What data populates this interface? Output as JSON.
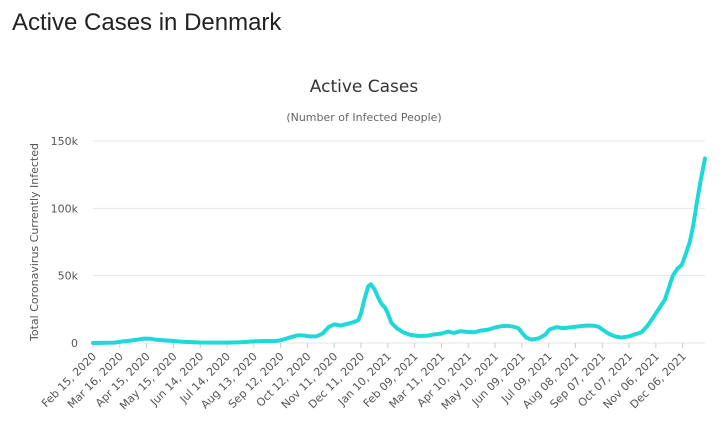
{
  "page": {
    "title": "Active Cases in Denmark"
  },
  "colors": {
    "line": "#1fd8d8",
    "grid": "#e6e6e6",
    "text": "#555555"
  },
  "chart_data": {
    "type": "line",
    "title": "Active Cases",
    "subtitle": "(Number of Infected People)",
    "xlabel": "",
    "ylabel": "Total Coronavirus Currently Infected",
    "ylim": [
      0,
      150000
    ],
    "y_ticks": [
      0,
      50000,
      100000,
      150000
    ],
    "y_tick_labels": [
      "0",
      "50k",
      "100k",
      "150k"
    ],
    "x_range": [
      "2020-02-15",
      "2021-12-31"
    ],
    "x_tick_labels": [
      "Feb 15, 2020",
      "Mar 16, 2020",
      "Apr 15, 2020",
      "May 15, 2020",
      "Jun 14, 2020",
      "Jul 14, 2020",
      "Aug 13, 2020",
      "Sep 12, 2020",
      "Oct 12, 2020",
      "Nov 11, 2020",
      "Dec 11, 2020",
      "Jan 10, 2021",
      "Feb 09, 2021",
      "Mar 11, 2021",
      "Apr 10, 2021",
      "May 10, 2021",
      "Jun 09, 2021",
      "Jul 09, 2021",
      "Aug 08, 2021",
      "Sep 07, 2021",
      "Oct 07, 2021",
      "Nov 06, 2021",
      "Dec 06, 2021"
    ],
    "grid": true,
    "legend": "none",
    "series": [
      {
        "points": [
          [
            "2020-02-15",
            0
          ],
          [
            "2020-03-10",
            300
          ],
          [
            "2020-03-20",
            1200
          ],
          [
            "2020-03-30",
            2000
          ],
          [
            "2020-04-05",
            2500
          ],
          [
            "2020-04-12",
            3300
          ],
          [
            "2020-04-19",
            3200
          ],
          [
            "2020-04-26",
            2400
          ],
          [
            "2020-05-10",
            1800
          ],
          [
            "2020-05-25",
            1000
          ],
          [
            "2020-06-14",
            400
          ],
          [
            "2020-07-14",
            300
          ],
          [
            "2020-07-30",
            500
          ],
          [
            "2020-08-13",
            1200
          ],
          [
            "2020-08-25",
            1500
          ],
          [
            "2020-09-05",
            1400
          ],
          [
            "2020-09-12",
            2000
          ],
          [
            "2020-09-22",
            4000
          ],
          [
            "2020-10-01",
            5700
          ],
          [
            "2020-10-08",
            5600
          ],
          [
            "2020-10-15",
            4800
          ],
          [
            "2020-10-22",
            5000
          ],
          [
            "2020-10-29",
            7000
          ],
          [
            "2020-11-05",
            12000
          ],
          [
            "2020-11-11",
            13800
          ],
          [
            "2020-11-18",
            13000
          ],
          [
            "2020-11-25",
            14000
          ],
          [
            "2020-12-03",
            15500
          ],
          [
            "2020-12-08",
            17000
          ],
          [
            "2020-12-11",
            22000
          ],
          [
            "2020-12-15",
            33000
          ],
          [
            "2020-12-19",
            42000
          ],
          [
            "2020-12-22",
            43500
          ],
          [
            "2020-12-26",
            40000
          ],
          [
            "2020-12-30",
            34000
          ],
          [
            "2021-01-03",
            29000
          ],
          [
            "2021-01-07",
            26000
          ],
          [
            "2021-01-10",
            22000
          ],
          [
            "2021-01-14",
            15000
          ],
          [
            "2021-01-20",
            11000
          ],
          [
            "2021-01-27",
            8000
          ],
          [
            "2021-02-04",
            6000
          ],
          [
            "2021-02-14",
            5200
          ],
          [
            "2021-02-24",
            5500
          ],
          [
            "2021-03-04",
            6500
          ],
          [
            "2021-03-11",
            7000
          ],
          [
            "2021-03-18",
            8500
          ],
          [
            "2021-03-25",
            7500
          ],
          [
            "2021-04-01",
            8700
          ],
          [
            "2021-04-10",
            8200
          ],
          [
            "2021-04-17",
            8000
          ],
          [
            "2021-04-24",
            9200
          ],
          [
            "2021-05-03",
            10000
          ],
          [
            "2021-05-10",
            11500
          ],
          [
            "2021-05-17",
            12500
          ],
          [
            "2021-05-24",
            12800
          ],
          [
            "2021-05-31",
            12000
          ],
          [
            "2021-06-05",
            11000
          ],
          [
            "2021-06-10",
            7000
          ],
          [
            "2021-06-14",
            4000
          ],
          [
            "2021-06-20",
            2500
          ],
          [
            "2021-06-28",
            3500
          ],
          [
            "2021-07-05",
            6000
          ],
          [
            "2021-07-10",
            10000
          ],
          [
            "2021-07-18",
            11800
          ],
          [
            "2021-07-25",
            11000
          ],
          [
            "2021-08-01",
            11500
          ],
          [
            "2021-08-08",
            12000
          ],
          [
            "2021-08-15",
            12600
          ],
          [
            "2021-08-22",
            13000
          ],
          [
            "2021-08-29",
            12800
          ],
          [
            "2021-09-03",
            12000
          ],
          [
            "2021-09-07",
            10000
          ],
          [
            "2021-09-14",
            7000
          ],
          [
            "2021-09-21",
            5000
          ],
          [
            "2021-09-28",
            4000
          ],
          [
            "2021-10-07",
            5000
          ],
          [
            "2021-10-14",
            6500
          ],
          [
            "2021-10-21",
            8000
          ],
          [
            "2021-10-28",
            13000
          ],
          [
            "2021-11-04",
            20000
          ],
          [
            "2021-11-11",
            27000
          ],
          [
            "2021-11-16",
            32000
          ],
          [
            "2021-11-20",
            40000
          ],
          [
            "2021-11-25",
            50000
          ],
          [
            "2021-11-30",
            55000
          ],
          [
            "2021-12-05",
            58000
          ],
          [
            "2021-12-10",
            67000
          ],
          [
            "2021-12-14",
            75000
          ],
          [
            "2021-12-18",
            88000
          ],
          [
            "2021-12-22",
            105000
          ],
          [
            "2021-12-26",
            120000
          ],
          [
            "2021-12-31",
            137000
          ]
        ]
      }
    ]
  }
}
